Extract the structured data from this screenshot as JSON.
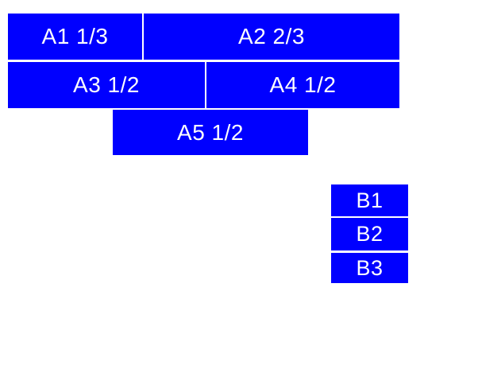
{
  "colors": {
    "block": "#0000ff",
    "label": "#ffffff",
    "page_background": "#ffffff"
  },
  "blocks": {
    "a1": {
      "label": "A1 1/3"
    },
    "a2": {
      "label": "A2 2/3"
    },
    "a3": {
      "label": "A3 1/2"
    },
    "a4": {
      "label": "A4 1/2"
    },
    "a5": {
      "label": "A5 1/2"
    },
    "b1": {
      "label": "B1"
    },
    "b2": {
      "label": "B2"
    },
    "b3": {
      "label": "B3"
    }
  }
}
